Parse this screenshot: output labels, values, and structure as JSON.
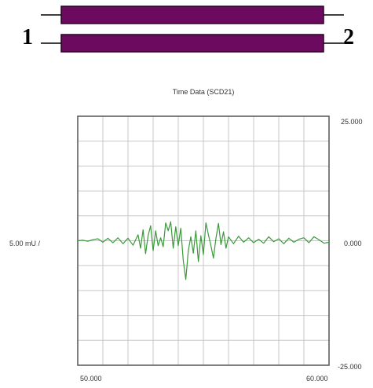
{
  "diagram": {
    "port_labels": [
      "1",
      "2"
    ],
    "line_color": "#6b0a5e",
    "line_stroke": "#2a0026"
  },
  "chart_data": {
    "type": "line",
    "title": "Time Data (SCD21)",
    "xlabel": "",
    "ylabel": "5.00 mU /",
    "xlim": [
      50.0,
      60.0
    ],
    "ylim": [
      -25.0,
      25.0
    ],
    "x_tick_labels": [
      "50.000",
      "60.000"
    ],
    "right_tick_labels": [
      "25.000",
      "0.000",
      "-25.000"
    ],
    "grid": true,
    "series": [
      {
        "color": "#3a9a3a",
        "x": [
          50.0,
          50.2,
          50.4,
          50.6,
          50.8,
          51.0,
          51.2,
          51.4,
          51.6,
          51.8,
          52.0,
          52.2,
          52.4,
          52.5,
          52.6,
          52.7,
          52.8,
          52.9,
          53.0,
          53.1,
          53.2,
          53.3,
          53.4,
          53.5,
          53.6,
          53.7,
          53.8,
          53.9,
          54.0,
          54.1,
          54.2,
          54.3,
          54.4,
          54.5,
          54.6,
          54.7,
          54.8,
          54.9,
          55.0,
          55.1,
          55.2,
          55.3,
          55.4,
          55.5,
          55.6,
          55.7,
          55.8,
          55.9,
          56.0,
          56.2,
          56.4,
          56.6,
          56.8,
          57.0,
          57.2,
          57.4,
          57.6,
          57.8,
          58.0,
          58.2,
          58.4,
          58.6,
          58.8,
          59.0,
          59.2,
          59.4,
          59.6,
          59.8,
          60.0
        ],
        "values": [
          0.0,
          0.1,
          -0.1,
          0.2,
          0.4,
          -0.3,
          0.5,
          -0.4,
          0.6,
          -0.6,
          0.5,
          -0.9,
          1.2,
          -1.5,
          2.2,
          -2.6,
          1.0,
          3.0,
          -2.0,
          2.0,
          -1.0,
          0.6,
          -1.2,
          3.6,
          2.0,
          3.8,
          -1.5,
          2.8,
          -1.0,
          2.5,
          -4.0,
          -7.8,
          -2.0,
          0.8,
          -2.5,
          2.0,
          -4.2,
          1.0,
          -2.8,
          3.6,
          1.2,
          -1.0,
          -3.5,
          0.5,
          3.5,
          -0.8,
          1.8,
          -1.5,
          0.8,
          -0.6,
          0.9,
          -0.3,
          0.6,
          -0.4,
          0.3,
          -0.5,
          0.8,
          -0.2,
          0.4,
          -0.6,
          0.5,
          -0.3,
          0.3,
          0.6,
          -0.4,
          0.8,
          0.2,
          -0.5,
          -0.3
        ]
      }
    ]
  }
}
